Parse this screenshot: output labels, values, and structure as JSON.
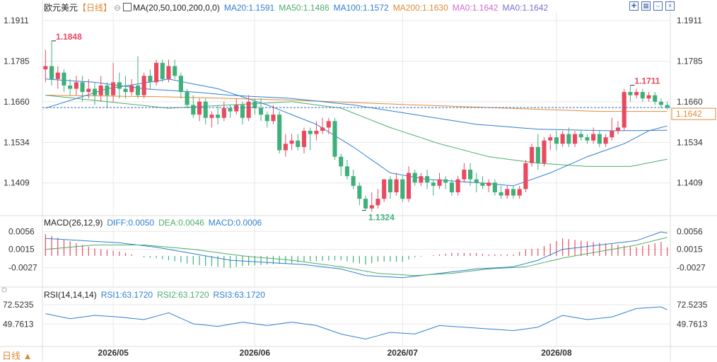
{
  "header": {
    "symbol": "欧元美元",
    "period_tag": "【日线】",
    "ma_label": "MA(20,50,100,200,0,0)",
    "ma20": "MA20:1.1591",
    "ma50": "MA50:1.1486",
    "ma100": "MA100:1.1572",
    "ma200": "MA200:1.1630",
    "ma0a": "MA0:1.1642",
    "ma0b": "MA0:1.1642"
  },
  "macd_header": {
    "label": "MACD(26,12,9)",
    "diff": "DIFF:0.0050",
    "dea": "DEA:0.0046",
    "macd": "MACD:0.0006"
  },
  "rsi_header": {
    "label": "RSI(14,14,14)",
    "rsi1": "RSI1:63.1720",
    "rsi2": "RSI2:63.1720",
    "rsi3": "RSI3:63.1720"
  },
  "bottom_left": "日线 ▲",
  "colors": {
    "up": "#e84a5f",
    "down": "#3fb07a",
    "ma20": "#2f7fd0",
    "ma50": "#4cae6b",
    "ma100": "#2f7fd0",
    "ma200": "#e0893a",
    "grid": "#e8e8e8",
    "axis_text": "#333333"
  },
  "chart_data": {
    "type": "candlestick",
    "price_axis": {
      "ticks": [
        "1.1911",
        "1.1785",
        "1.1660",
        "1.1534",
        "1.1409"
      ],
      "tick_values": [
        1.1911,
        1.1785,
        1.166,
        1.1534,
        1.1409
      ],
      "ylim": [
        1.131,
        1.1935
      ]
    },
    "x_labels": [
      "2026/05",
      "2026/06",
      "2026/07",
      "2026/08"
    ],
    "x_label_index": [
      11,
      34,
      58,
      83
    ],
    "annotations": {
      "high_label": "1.1848",
      "low_label": "1.1324",
      "recent_high_label": "1.1711",
      "last_price_tag": "1.1642",
      "last_price": 1.1642
    },
    "candles": [
      [
        1.176,
        1.177,
        1.182,
        1.172
      ],
      [
        1.177,
        1.173,
        1.1848,
        1.171
      ],
      [
        1.173,
        1.175,
        1.177,
        1.17
      ],
      [
        1.175,
        1.171,
        1.176,
        1.169
      ],
      [
        1.171,
        1.17,
        1.173,
        1.168
      ],
      [
        1.17,
        1.172,
        1.174,
        1.168
      ],
      [
        1.172,
        1.169,
        1.174,
        1.166
      ],
      [
        1.169,
        1.17,
        1.173,
        1.167
      ],
      [
        1.17,
        1.168,
        1.172,
        1.165
      ],
      [
        1.168,
        1.171,
        1.174,
        1.166
      ],
      [
        1.171,
        1.168,
        1.172,
        1.164
      ],
      [
        1.168,
        1.172,
        1.178,
        1.166
      ],
      [
        1.172,
        1.17,
        1.175,
        1.167
      ],
      [
        1.17,
        1.169,
        1.174,
        1.167
      ],
      [
        1.169,
        1.171,
        1.173,
        1.168
      ],
      [
        1.171,
        1.168,
        1.18,
        1.167
      ],
      [
        1.168,
        1.174,
        1.175,
        1.167
      ],
      [
        1.174,
        1.172,
        1.176,
        1.17
      ],
      [
        1.172,
        1.178,
        1.179,
        1.171
      ],
      [
        1.178,
        1.173,
        1.179,
        1.172
      ],
      [
        1.173,
        1.177,
        1.179,
        1.172
      ],
      [
        1.177,
        1.174,
        1.179,
        1.173
      ],
      [
        1.174,
        1.169,
        1.175,
        1.167
      ],
      [
        1.169,
        1.165,
        1.17,
        1.164
      ],
      [
        1.165,
        1.162,
        1.168,
        1.161
      ],
      [
        1.162,
        1.166,
        1.167,
        1.16
      ],
      [
        1.166,
        1.161,
        1.167,
        1.159
      ],
      [
        1.161,
        1.162,
        1.163,
        1.158
      ],
      [
        1.162,
        1.161,
        1.165,
        1.159
      ],
      [
        1.161,
        1.164,
        1.166,
        1.16
      ],
      [
        1.164,
        1.163,
        1.165,
        1.161
      ],
      [
        1.163,
        1.165,
        1.167,
        1.162
      ],
      [
        1.165,
        1.161,
        1.166,
        1.159
      ],
      [
        1.161,
        1.166,
        1.168,
        1.16
      ],
      [
        1.166,
        1.164,
        1.167,
        1.162
      ],
      [
        1.164,
        1.162,
        1.167,
        1.16
      ],
      [
        1.162,
        1.16,
        1.163,
        1.158
      ],
      [
        1.16,
        1.162,
        1.165,
        1.159
      ],
      [
        1.162,
        1.151,
        1.163,
        1.15
      ],
      [
        1.151,
        1.153,
        1.156,
        1.149
      ],
      [
        1.153,
        1.154,
        1.156,
        1.151
      ],
      [
        1.154,
        1.152,
        1.156,
        1.151
      ],
      [
        1.152,
        1.157,
        1.158,
        1.15
      ],
      [
        1.157,
        1.156,
        1.158,
        1.151
      ],
      [
        1.156,
        1.157,
        1.16,
        1.154
      ],
      [
        1.157,
        1.158,
        1.161,
        1.156
      ],
      [
        1.158,
        1.16,
        1.161,
        1.156
      ],
      [
        1.16,
        1.149,
        1.161,
        1.148
      ],
      [
        1.149,
        1.146,
        1.15,
        1.143
      ],
      [
        1.146,
        1.143,
        1.148,
        1.142
      ],
      [
        1.143,
        1.14,
        1.145,
        1.139
      ],
      [
        1.14,
        1.136,
        1.141,
        1.134
      ],
      [
        1.136,
        1.133,
        1.137,
        1.1324
      ],
      [
        1.133,
        1.134,
        1.138,
        1.132
      ],
      [
        1.134,
        1.136,
        1.139,
        1.133
      ],
      [
        1.136,
        1.142,
        1.142,
        1.135
      ],
      [
        1.142,
        1.138,
        1.143,
        1.136
      ],
      [
        1.138,
        1.142,
        1.144,
        1.137
      ],
      [
        1.142,
        1.136,
        1.143,
        1.135
      ],
      [
        1.136,
        1.144,
        1.146,
        1.135
      ],
      [
        1.144,
        1.141,
        1.145,
        1.14
      ],
      [
        1.141,
        1.143,
        1.144,
        1.14
      ],
      [
        1.143,
        1.141,
        1.145,
        1.139
      ],
      [
        1.141,
        1.14,
        1.142,
        1.137
      ],
      [
        1.14,
        1.142,
        1.144,
        1.139
      ],
      [
        1.142,
        1.141,
        1.143,
        1.139
      ],
      [
        1.141,
        1.138,
        1.142,
        1.137
      ],
      [
        1.138,
        1.142,
        1.143,
        1.137
      ],
      [
        1.142,
        1.145,
        1.147,
        1.141
      ],
      [
        1.145,
        1.142,
        1.147,
        1.14
      ],
      [
        1.142,
        1.141,
        1.144,
        1.138
      ],
      [
        1.141,
        1.14,
        1.143,
        1.139
      ],
      [
        1.14,
        1.141,
        1.142,
        1.138
      ],
      [
        1.141,
        1.138,
        1.142,
        1.137
      ],
      [
        1.138,
        1.137,
        1.14,
        1.136
      ],
      [
        1.137,
        1.139,
        1.14,
        1.136
      ],
      [
        1.139,
        1.137,
        1.14,
        1.136
      ],
      [
        1.137,
        1.139,
        1.14,
        1.136
      ],
      [
        1.139,
        1.147,
        1.148,
        1.138
      ],
      [
        1.147,
        1.152,
        1.153,
        1.146
      ],
      [
        1.152,
        1.147,
        1.156,
        1.145
      ],
      [
        1.147,
        1.154,
        1.155,
        1.146
      ],
      [
        1.154,
        1.155,
        1.156,
        1.151
      ],
      [
        1.155,
        1.153,
        1.157,
        1.151
      ],
      [
        1.153,
        1.156,
        1.157,
        1.152
      ],
      [
        1.156,
        1.153,
        1.158,
        1.152
      ],
      [
        1.153,
        1.156,
        1.157,
        1.152
      ],
      [
        1.156,
        1.155,
        1.157,
        1.154
      ],
      [
        1.155,
        1.154,
        1.156,
        1.153
      ],
      [
        1.154,
        1.156,
        1.158,
        1.153
      ],
      [
        1.156,
        1.153,
        1.157,
        1.152
      ],
      [
        1.153,
        1.155,
        1.156,
        1.152
      ],
      [
        1.155,
        1.157,
        1.161,
        1.154
      ],
      [
        1.157,
        1.158,
        1.16,
        1.156
      ],
      [
        1.158,
        1.169,
        1.17,
        1.157
      ],
      [
        1.169,
        1.168,
        1.1711,
        1.166
      ],
      [
        1.168,
        1.169,
        1.17,
        1.167
      ],
      [
        1.169,
        1.167,
        1.17,
        1.166
      ],
      [
        1.167,
        1.168,
        1.169,
        1.166
      ],
      [
        1.168,
        1.166,
        1.169,
        1.165
      ],
      [
        1.166,
        1.165,
        1.167,
        1.164
      ],
      [
        1.165,
        1.1642,
        1.166,
        1.1635
      ]
    ],
    "ma_lines": {
      "ma20_knots": [
        [
          0,
          1.164
        ],
        [
          10,
          1.17
        ],
        [
          20,
          1.173
        ],
        [
          28,
          1.17
        ],
        [
          36,
          1.165
        ],
        [
          44,
          1.159
        ],
        [
          50,
          1.152
        ],
        [
          56,
          1.144
        ],
        [
          62,
          1.142
        ],
        [
          70,
          1.141
        ],
        [
          76,
          1.14
        ],
        [
          82,
          1.144
        ],
        [
          88,
          1.149
        ],
        [
          94,
          1.153
        ],
        [
          98,
          1.157
        ],
        [
          102,
          1.159
        ]
      ],
      "ma50_knots": [
        [
          0,
          1.168
        ],
        [
          10,
          1.166
        ],
        [
          20,
          1.164
        ],
        [
          30,
          1.165
        ],
        [
          40,
          1.166
        ],
        [
          48,
          1.164
        ],
        [
          56,
          1.158
        ],
        [
          64,
          1.153
        ],
        [
          72,
          1.149
        ],
        [
          80,
          1.147
        ],
        [
          88,
          1.146
        ],
        [
          95,
          1.146
        ],
        [
          102,
          1.1486
        ]
      ],
      "ma100_knots": [
        [
          0,
          1.173
        ],
        [
          8,
          1.172
        ],
        [
          16,
          1.17
        ],
        [
          24,
          1.169
        ],
        [
          30,
          1.168
        ],
        [
          40,
          1.167
        ],
        [
          50,
          1.165
        ],
        [
          60,
          1.162
        ],
        [
          70,
          1.159
        ],
        [
          80,
          1.1575
        ],
        [
          92,
          1.157
        ],
        [
          102,
          1.1572
        ]
      ],
      "ma200_knots": [
        [
          0,
          1.168
        ],
        [
          20,
          1.1675
        ],
        [
          40,
          1.1665
        ],
        [
          60,
          1.165
        ],
        [
          75,
          1.164
        ],
        [
          90,
          1.163
        ],
        [
          102,
          1.163
        ]
      ]
    },
    "macd": {
      "ticks": [
        "0.0056",
        "0.0015",
        "-0.0027"
      ],
      "tick_values": [
        0.0056,
        0.0015,
        -0.0027
      ],
      "ylim": [
        -0.0065,
        0.0068
      ],
      "diff_knots": [
        [
          0,
          0.004
        ],
        [
          6,
          0.0035
        ],
        [
          12,
          0.003
        ],
        [
          18,
          0.002
        ],
        [
          24,
          0.0005
        ],
        [
          30,
          -0.001
        ],
        [
          36,
          -0.0015
        ],
        [
          42,
          -0.002
        ],
        [
          48,
          -0.003
        ],
        [
          52,
          -0.0045
        ],
        [
          58,
          -0.005
        ],
        [
          64,
          -0.004
        ],
        [
          70,
          -0.003
        ],
        [
          76,
          -0.0025
        ],
        [
          80,
          -0.001
        ],
        [
          84,
          0.0015
        ],
        [
          90,
          0.0025
        ],
        [
          96,
          0.0035
        ],
        [
          100,
          0.0055
        ],
        [
          102,
          0.005
        ]
      ],
      "dea_knots": [
        [
          0,
          0.0015
        ],
        [
          8,
          0.0025
        ],
        [
          16,
          0.0025
        ],
        [
          24,
          0.0015
        ],
        [
          32,
          0.0
        ],
        [
          40,
          -0.001
        ],
        [
          48,
          -0.0025
        ],
        [
          54,
          -0.004
        ],
        [
          60,
          -0.0045
        ],
        [
          66,
          -0.004
        ],
        [
          72,
          -0.003
        ],
        [
          78,
          -0.0025
        ],
        [
          84,
          -0.0005
        ],
        [
          90,
          0.001
        ],
        [
          96,
          0.0025
        ],
        [
          102,
          0.0046
        ]
      ]
    },
    "rsi": {
      "ticks": [
        "72.5235",
        "49.7613"
      ],
      "tick_values": [
        72.5235,
        49.7613
      ],
      "ylim": [
        25,
        80
      ],
      "knots": [
        [
          0,
          62
        ],
        [
          4,
          56
        ],
        [
          8,
          60
        ],
        [
          12,
          58
        ],
        [
          16,
          55
        ],
        [
          20,
          63
        ],
        [
          24,
          50
        ],
        [
          28,
          47
        ],
        [
          32,
          52
        ],
        [
          36,
          48
        ],
        [
          40,
          52
        ],
        [
          44,
          48
        ],
        [
          48,
          38
        ],
        [
          52,
          32
        ],
        [
          56,
          40
        ],
        [
          60,
          38
        ],
        [
          64,
          48
        ],
        [
          68,
          46
        ],
        [
          72,
          44
        ],
        [
          76,
          42
        ],
        [
          80,
          46
        ],
        [
          84,
          60
        ],
        [
          88,
          55
        ],
        [
          92,
          58
        ],
        [
          96,
          68
        ],
        [
          100,
          70
        ],
        [
          102,
          63
        ]
      ]
    }
  }
}
